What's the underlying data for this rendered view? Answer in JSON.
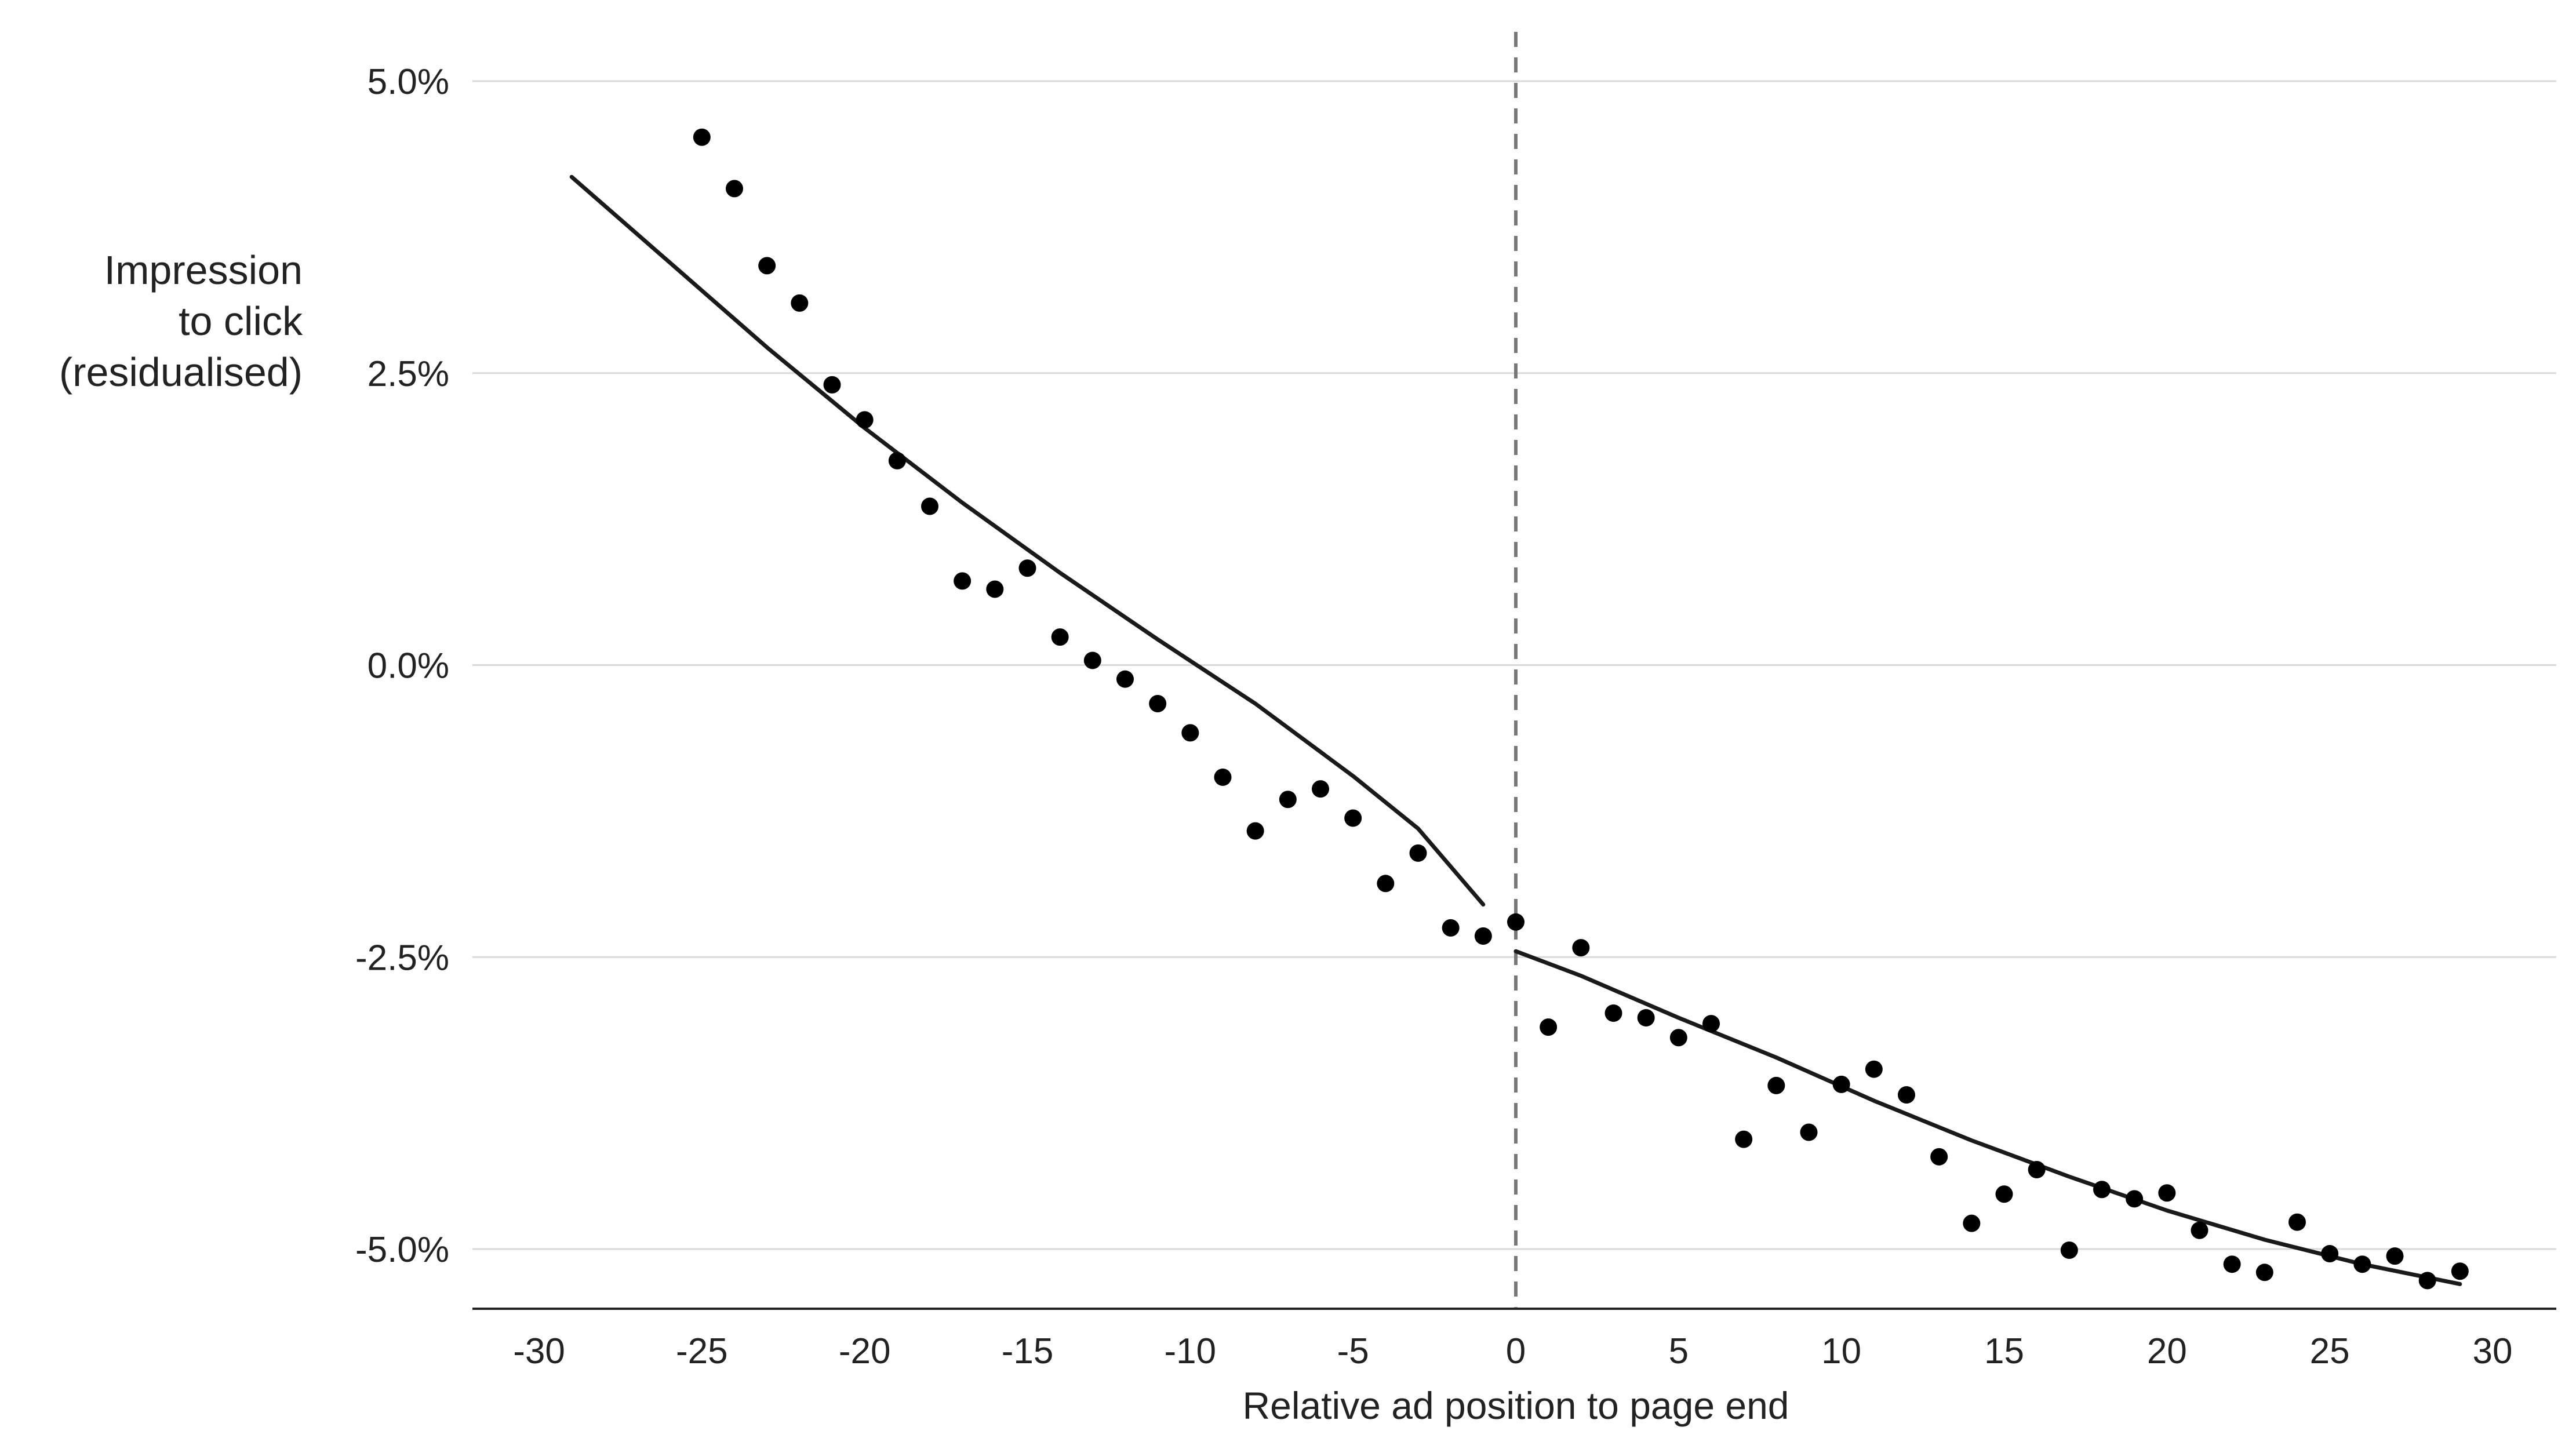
{
  "chart_data": {
    "type": "scatter",
    "title": "",
    "xlabel": "Relative ad position to page end",
    "ylabel_lines": [
      "Impression",
      "to click",
      "(residualised)"
    ],
    "xlim": [
      -30,
      30
    ],
    "ylim": [
      -5.5,
      5.3
    ],
    "x_ticks": [
      -30,
      -25,
      -20,
      -15,
      -10,
      -5,
      0,
      5,
      10,
      15,
      20,
      25,
      30
    ],
    "x_tick_labels": [
      "-30",
      "-25",
      "-20",
      "-15",
      "-10",
      "-5",
      "0",
      "5",
      "10",
      "15",
      "20",
      "25",
      "30"
    ],
    "y_ticks": [
      5.0,
      2.5,
      0.0,
      -2.5,
      -5.0
    ],
    "y_tick_labels": [
      "5.0%",
      "2.5%",
      "0.0%",
      "-2.5%",
      "-5.0%"
    ],
    "grid": "horizontal",
    "vertical_reference_line": 0,
    "colors": {
      "points": "#000000",
      "fit": "#1a1a1a",
      "grid": "#d9d9d9",
      "refline": "#777777",
      "axis": "#222222"
    },
    "points": [
      {
        "x": -25,
        "y": 4.52
      },
      {
        "x": -24,
        "y": 4.08
      },
      {
        "x": -23,
        "y": 3.42
      },
      {
        "x": -22,
        "y": 3.1
      },
      {
        "x": -21,
        "y": 2.4
      },
      {
        "x": -20,
        "y": 2.1
      },
      {
        "x": -19,
        "y": 1.75
      },
      {
        "x": -18,
        "y": 1.36
      },
      {
        "x": -17,
        "y": 0.72
      },
      {
        "x": -16,
        "y": 0.65
      },
      {
        "x": -15,
        "y": 0.83
      },
      {
        "x": -14,
        "y": 0.24
      },
      {
        "x": -13,
        "y": 0.04
      },
      {
        "x": -12,
        "y": -0.12
      },
      {
        "x": -11,
        "y": -0.33
      },
      {
        "x": -10,
        "y": -0.58
      },
      {
        "x": -9,
        "y": -0.96
      },
      {
        "x": -8,
        "y": -1.42
      },
      {
        "x": -7,
        "y": -1.15
      },
      {
        "x": -6,
        "y": -1.06
      },
      {
        "x": -5,
        "y": -1.31
      },
      {
        "x": -4,
        "y": -1.87
      },
      {
        "x": -3,
        "y": -1.61
      },
      {
        "x": -2,
        "y": -2.25
      },
      {
        "x": -1,
        "y": -2.32
      },
      {
        "x": 0,
        "y": -2.2
      },
      {
        "x": 1,
        "y": -3.1
      },
      {
        "x": 2,
        "y": -2.42
      },
      {
        "x": 3,
        "y": -2.98
      },
      {
        "x": 4,
        "y": -3.02
      },
      {
        "x": 5,
        "y": -3.19
      },
      {
        "x": 6,
        "y": -3.07
      },
      {
        "x": 7,
        "y": -4.06
      },
      {
        "x": 8,
        "y": -3.6
      },
      {
        "x": 9,
        "y": -4.0
      },
      {
        "x": 10,
        "y": -3.59
      },
      {
        "x": 11,
        "y": -3.46
      },
      {
        "x": 12,
        "y": -3.68
      },
      {
        "x": 13,
        "y": -4.21
      },
      {
        "x": 14,
        "y": -4.78
      },
      {
        "x": 15,
        "y": -4.53
      },
      {
        "x": 16,
        "y": -4.32
      },
      {
        "x": 17,
        "y": -5.01
      },
      {
        "x": 18,
        "y": -4.49
      },
      {
        "x": 19,
        "y": -4.57
      },
      {
        "x": 20,
        "y": -4.52
      },
      {
        "x": 21,
        "y": -4.84
      },
      {
        "x": 22,
        "y": -5.13
      },
      {
        "x": 23,
        "y": -5.2
      },
      {
        "x": 24,
        "y": -4.77
      },
      {
        "x": 25,
        "y": -5.04
      },
      {
        "x": 26,
        "y": -5.13
      },
      {
        "x": 27,
        "y": -5.06
      },
      {
        "x": 28,
        "y": -5.27
      },
      {
        "x": 29,
        "y": -5.19
      }
    ],
    "fit_left": {
      "x": [
        -29,
        -26,
        -23,
        -20,
        -17,
        -14,
        -11,
        -8,
        -5,
        -3,
        -1
      ],
      "y": [
        4.18,
        3.45,
        2.72,
        2.03,
        1.39,
        0.79,
        0.22,
        -0.33,
        -0.95,
        -1.4,
        -2.05
      ]
    },
    "fit_right": {
      "x": [
        0,
        2,
        5,
        8,
        11,
        14,
        17,
        20,
        23,
        26,
        29
      ],
      "y": [
        -2.45,
        -2.66,
        -3.02,
        -3.36,
        -3.73,
        -4.07,
        -4.38,
        -4.67,
        -4.92,
        -5.13,
        -5.3
      ]
    }
  }
}
